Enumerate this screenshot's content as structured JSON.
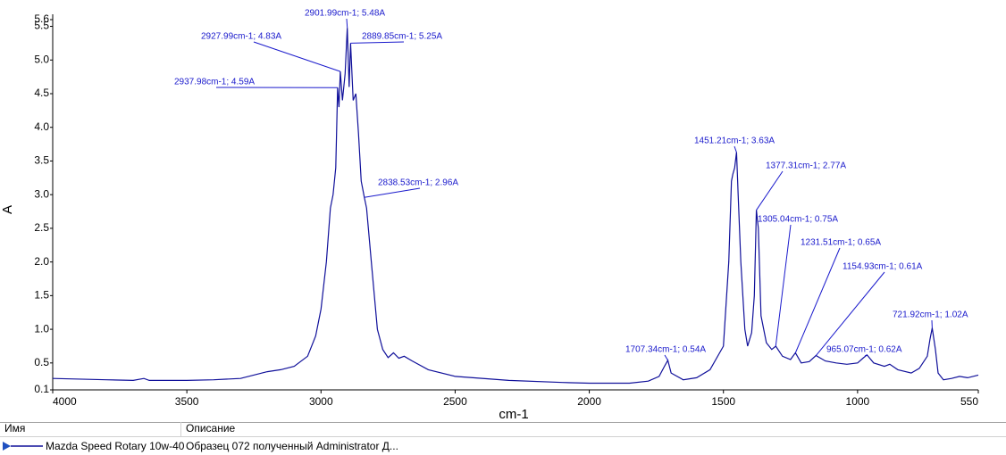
{
  "chart_data": {
    "type": "line",
    "xlabel": "cm-1",
    "ylabel": "A",
    "xlim": [
      4000,
      550
    ],
    "ylim": [
      0.1,
      5.6
    ],
    "xticks": [
      4000,
      3500,
      3000,
      2500,
      2000,
      1500,
      1000,
      550
    ],
    "yticks": [
      0.1,
      0.5,
      {
        "value": 1,
        "label": "1.0"
      },
      1.5,
      {
        "value": 2,
        "label": "2.0"
      },
      2.5,
      {
        "value": 3,
        "label": "3.0"
      },
      3.5,
      {
        "value": 4,
        "label": "4.0"
      },
      4.5,
      {
        "value": 5,
        "label": "5.0"
      },
      5.5,
      5.6
    ],
    "x": [
      4000,
      3800,
      3700,
      3660,
      3640,
      3500,
      3400,
      3300,
      3200,
      3150,
      3100,
      3050,
      3020,
      3000,
      2980,
      2965,
      2955,
      2945,
      2937.98,
      2933,
      2927.99,
      2920,
      2910,
      2901.99,
      2895,
      2889.85,
      2880,
      2870,
      2860,
      2850,
      2838.53,
      2830,
      2810,
      2790,
      2770,
      2750,
      2730,
      2710,
      2690,
      2660,
      2600,
      2500,
      2300,
      2100,
      2000,
      1850,
      1780,
      1740,
      1720,
      1707.34,
      1695,
      1650,
      1600,
      1550,
      1500,
      1480,
      1470,
      1465,
      1458,
      1451.21,
      1445,
      1435,
      1420,
      1410,
      1395,
      1385,
      1377.31,
      1370,
      1360,
      1340,
      1320,
      1305.04,
      1280,
      1250,
      1231.51,
      1210,
      1180,
      1154.93,
      1120,
      1080,
      1040,
      1000,
      980,
      965.07,
      940,
      900,
      880,
      850,
      800,
      770,
      740,
      730,
      721.92,
      710,
      700,
      680,
      650,
      620,
      590,
      550
    ],
    "series": [
      {
        "name": "Mazda Speed Rotary 10w-40",
        "color": "#10109a",
        "values": [
          0.27,
          0.25,
          0.24,
          0.27,
          0.24,
          0.24,
          0.25,
          0.27,
          0.37,
          0.4,
          0.45,
          0.6,
          0.9,
          1.3,
          2.0,
          2.8,
          3.0,
          3.4,
          4.59,
          4.3,
          4.83,
          4.4,
          4.8,
          5.48,
          4.6,
          5.25,
          4.4,
          4.5,
          3.9,
          3.2,
          2.96,
          2.8,
          1.9,
          1.0,
          0.7,
          0.58,
          0.65,
          0.57,
          0.6,
          0.53,
          0.4,
          0.3,
          0.24,
          0.21,
          0.2,
          0.2,
          0.23,
          0.3,
          0.45,
          0.54,
          0.35,
          0.25,
          0.28,
          0.4,
          0.75,
          2.0,
          3.2,
          3.3,
          3.4,
          3.63,
          3.0,
          2.0,
          1.0,
          0.75,
          0.95,
          1.5,
          2.77,
          2.5,
          1.2,
          0.8,
          0.7,
          0.75,
          0.6,
          0.55,
          0.65,
          0.5,
          0.52,
          0.61,
          0.53,
          0.5,
          0.48,
          0.5,
          0.57,
          0.62,
          0.5,
          0.45,
          0.48,
          0.4,
          0.35,
          0.42,
          0.6,
          0.85,
          1.02,
          0.7,
          0.35,
          0.25,
          0.27,
          0.3,
          0.28,
          0.32
        ]
      }
    ],
    "annotations": [
      {
        "text": "2901.99cm-1; 5.48A",
        "x": 2901.99,
        "y": 5.48
      },
      {
        "text": "2927.99cm-1; 4.83A",
        "x": 2927.99,
        "y": 4.83
      },
      {
        "text": "2889.85cm-1; 5.25A",
        "x": 2889.85,
        "y": 5.25
      },
      {
        "text": "2937.98cm-1; 4.59A",
        "x": 2937.98,
        "y": 4.59
      },
      {
        "text": "2838.53cm-1; 2.96A",
        "x": 2838.53,
        "y": 2.96
      },
      {
        "text": "1451.21cm-1; 3.63A",
        "x": 1451.21,
        "y": 3.63
      },
      {
        "text": "1377.31cm-1; 2.77A",
        "x": 1377.31,
        "y": 2.77
      },
      {
        "text": "1305.04cm-1; 0.75A",
        "x": 1305.04,
        "y": 0.75
      },
      {
        "text": "1231.51cm-1; 0.65A",
        "x": 1231.51,
        "y": 0.65
      },
      {
        "text": "1154.93cm-1; 0.61A",
        "x": 1154.93,
        "y": 0.61
      },
      {
        "text": "965.07cm-1; 0.62A",
        "x": 965.07,
        "y": 0.62
      },
      {
        "text": "721.92cm-1; 1.02A",
        "x": 721.92,
        "y": 1.02
      },
      {
        "text": "1707.34cm-1; 0.54A",
        "x": 1707.34,
        "y": 0.54
      }
    ]
  },
  "table": {
    "columns": [
      "Имя",
      "Описание"
    ],
    "description": "Образец 072 полученный Administrator Д..."
  }
}
